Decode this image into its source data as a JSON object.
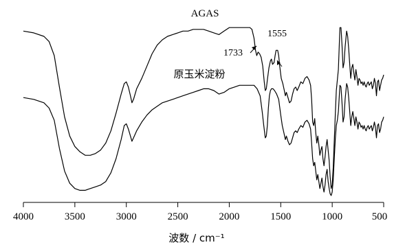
{
  "chart_data": {
    "type": "line",
    "title": "",
    "xlabel": "波数 / cm⁻¹",
    "ylabel": "",
    "x_reversed": true,
    "xlim": [
      4000,
      500
    ],
    "y_axis_visible": false,
    "grid": false,
    "x_ticks": [
      4000,
      3500,
      3000,
      2500,
      2000,
      1500,
      1000,
      500
    ],
    "series": [
      {
        "name": "AGAS",
        "points": [
          [
            4000,
            0.06
          ],
          [
            3900,
            0.07
          ],
          [
            3800,
            0.09
          ],
          [
            3750,
            0.12
          ],
          [
            3700,
            0.2
          ],
          [
            3650,
            0.38
          ],
          [
            3600,
            0.55
          ],
          [
            3550,
            0.66
          ],
          [
            3500,
            0.72
          ],
          [
            3450,
            0.75
          ],
          [
            3400,
            0.77
          ],
          [
            3350,
            0.77
          ],
          [
            3300,
            0.76
          ],
          [
            3250,
            0.74
          ],
          [
            3200,
            0.7
          ],
          [
            3150,
            0.63
          ],
          [
            3100,
            0.53
          ],
          [
            3050,
            0.42
          ],
          [
            3020,
            0.36
          ],
          [
            3000,
            0.35
          ],
          [
            2980,
            0.38
          ],
          [
            2960,
            0.43
          ],
          [
            2945,
            0.47
          ],
          [
            2930,
            0.45
          ],
          [
            2900,
            0.39
          ],
          [
            2850,
            0.33
          ],
          [
            2800,
            0.26
          ],
          [
            2750,
            0.19
          ],
          [
            2700,
            0.14
          ],
          [
            2650,
            0.11
          ],
          [
            2600,
            0.09
          ],
          [
            2550,
            0.08
          ],
          [
            2500,
            0.07
          ],
          [
            2450,
            0.06
          ],
          [
            2400,
            0.06
          ],
          [
            2350,
            0.05
          ],
          [
            2300,
            0.05
          ],
          [
            2250,
            0.05
          ],
          [
            2200,
            0.06
          ],
          [
            2150,
            0.07
          ],
          [
            2100,
            0.08
          ],
          [
            2050,
            0.06
          ],
          [
            2000,
            0.04
          ],
          [
            1950,
            0.04
          ],
          [
            1900,
            0.04
          ],
          [
            1850,
            0.04
          ],
          [
            1800,
            0.04
          ],
          [
            1780,
            0.05
          ],
          [
            1760,
            0.1
          ],
          [
            1745,
            0.17
          ],
          [
            1733,
            0.2
          ],
          [
            1720,
            0.18
          ],
          [
            1705,
            0.19
          ],
          [
            1690,
            0.21
          ],
          [
            1675,
            0.26
          ],
          [
            1660,
            0.35
          ],
          [
            1650,
            0.4
          ],
          [
            1640,
            0.39
          ],
          [
            1630,
            0.34
          ],
          [
            1615,
            0.27
          ],
          [
            1600,
            0.23
          ],
          [
            1590,
            0.22
          ],
          [
            1580,
            0.25
          ],
          [
            1565,
            0.24
          ],
          [
            1555,
            0.2
          ],
          [
            1545,
            0.17
          ],
          [
            1530,
            0.17
          ],
          [
            1520,
            0.2
          ],
          [
            1510,
            0.26
          ],
          [
            1495,
            0.33
          ],
          [
            1480,
            0.36
          ],
          [
            1465,
            0.4
          ],
          [
            1455,
            0.43
          ],
          [
            1445,
            0.41
          ],
          [
            1430,
            0.44
          ],
          [
            1415,
            0.47
          ],
          [
            1400,
            0.46
          ],
          [
            1385,
            0.42
          ],
          [
            1370,
            0.39
          ],
          [
            1355,
            0.38
          ],
          [
            1340,
            0.4
          ],
          [
            1325,
            0.38
          ],
          [
            1305,
            0.35
          ],
          [
            1285,
            0.36
          ],
          [
            1265,
            0.33
          ],
          [
            1245,
            0.32
          ],
          [
            1225,
            0.34
          ],
          [
            1210,
            0.37
          ],
          [
            1200,
            0.45
          ],
          [
            1190,
            0.58
          ],
          [
            1180,
            0.6
          ],
          [
            1170,
            0.56
          ],
          [
            1160,
            0.64
          ],
          [
            1150,
            0.7
          ],
          [
            1140,
            0.66
          ],
          [
            1130,
            0.71
          ],
          [
            1120,
            0.77
          ],
          [
            1110,
            0.74
          ],
          [
            1100,
            0.72
          ],
          [
            1090,
            0.79
          ],
          [
            1080,
            0.83
          ],
          [
            1070,
            0.78
          ],
          [
            1060,
            0.72
          ],
          [
            1050,
            0.68
          ],
          [
            1040,
            0.74
          ],
          [
            1030,
            0.8
          ],
          [
            1020,
            0.89
          ],
          [
            1010,
            0.96
          ],
          [
            1000,
            0.94
          ],
          [
            990,
            0.84
          ],
          [
            980,
            0.69
          ],
          [
            970,
            0.54
          ],
          [
            960,
            0.4
          ],
          [
            950,
            0.34
          ],
          [
            940,
            0.28
          ],
          [
            930,
            0.12
          ],
          [
            925,
            0.04
          ],
          [
            915,
            0.04
          ],
          [
            905,
            0.14
          ],
          [
            895,
            0.27
          ],
          [
            885,
            0.24
          ],
          [
            875,
            0.15
          ],
          [
            860,
            0.06
          ],
          [
            850,
            0.09
          ],
          [
            840,
            0.16
          ],
          [
            830,
            0.25
          ],
          [
            820,
            0.33
          ],
          [
            810,
            0.27
          ],
          [
            800,
            0.25
          ],
          [
            790,
            0.3
          ],
          [
            780,
            0.34
          ],
          [
            770,
            0.28
          ],
          [
            760,
            0.32
          ],
          [
            750,
            0.37
          ],
          [
            740,
            0.33
          ],
          [
            730,
            0.34
          ],
          [
            720,
            0.36
          ],
          [
            710,
            0.35
          ],
          [
            700,
            0.37
          ],
          [
            690,
            0.35
          ],
          [
            680,
            0.37
          ],
          [
            670,
            0.38
          ],
          [
            660,
            0.36
          ],
          [
            650,
            0.35
          ],
          [
            640,
            0.37
          ],
          [
            630,
            0.36
          ],
          [
            620,
            0.35
          ],
          [
            610,
            0.39
          ],
          [
            600,
            0.37
          ],
          [
            590,
            0.33
          ],
          [
            580,
            0.36
          ],
          [
            570,
            0.43
          ],
          [
            560,
            0.35
          ],
          [
            550,
            0.34
          ],
          [
            540,
            0.4
          ],
          [
            530,
            0.37
          ],
          [
            520,
            0.34
          ],
          [
            510,
            0.33
          ],
          [
            500,
            0.31
          ]
        ]
      },
      {
        "name": "原玉米淀粉",
        "points": [
          [
            4000,
            0.44
          ],
          [
            3900,
            0.45
          ],
          [
            3800,
            0.47
          ],
          [
            3750,
            0.5
          ],
          [
            3700,
            0.57
          ],
          [
            3650,
            0.73
          ],
          [
            3600,
            0.86
          ],
          [
            3550,
            0.93
          ],
          [
            3500,
            0.96
          ],
          [
            3450,
            0.97
          ],
          [
            3400,
            0.97
          ],
          [
            3350,
            0.96
          ],
          [
            3300,
            0.95
          ],
          [
            3250,
            0.94
          ],
          [
            3200,
            0.92
          ],
          [
            3150,
            0.87
          ],
          [
            3100,
            0.79
          ],
          [
            3050,
            0.68
          ],
          [
            3020,
            0.6
          ],
          [
            3000,
            0.59
          ],
          [
            2980,
            0.62
          ],
          [
            2960,
            0.66
          ],
          [
            2945,
            0.69
          ],
          [
            2930,
            0.67
          ],
          [
            2900,
            0.63
          ],
          [
            2850,
            0.58
          ],
          [
            2800,
            0.54
          ],
          [
            2750,
            0.51
          ],
          [
            2700,
            0.49
          ],
          [
            2650,
            0.47
          ],
          [
            2600,
            0.46
          ],
          [
            2550,
            0.45
          ],
          [
            2500,
            0.44
          ],
          [
            2450,
            0.43
          ],
          [
            2400,
            0.42
          ],
          [
            2350,
            0.41
          ],
          [
            2300,
            0.4
          ],
          [
            2250,
            0.39
          ],
          [
            2200,
            0.39
          ],
          [
            2150,
            0.4
          ],
          [
            2100,
            0.42
          ],
          [
            2050,
            0.41
          ],
          [
            2000,
            0.39
          ],
          [
            1950,
            0.38
          ],
          [
            1900,
            0.37
          ],
          [
            1850,
            0.37
          ],
          [
            1800,
            0.37
          ],
          [
            1760,
            0.37
          ],
          [
            1730,
            0.39
          ],
          [
            1700,
            0.43
          ],
          [
            1680,
            0.52
          ],
          [
            1665,
            0.6
          ],
          [
            1650,
            0.67
          ],
          [
            1640,
            0.66
          ],
          [
            1630,
            0.6
          ],
          [
            1620,
            0.5
          ],
          [
            1610,
            0.43
          ],
          [
            1600,
            0.4
          ],
          [
            1590,
            0.39
          ],
          [
            1575,
            0.39
          ],
          [
            1560,
            0.4
          ],
          [
            1540,
            0.42
          ],
          [
            1520,
            0.45
          ],
          [
            1500,
            0.54
          ],
          [
            1485,
            0.6
          ],
          [
            1470,
            0.64
          ],
          [
            1455,
            0.68
          ],
          [
            1445,
            0.66
          ],
          [
            1430,
            0.69
          ],
          [
            1415,
            0.71
          ],
          [
            1400,
            0.7
          ],
          [
            1385,
            0.67
          ],
          [
            1370,
            0.64
          ],
          [
            1355,
            0.63
          ],
          [
            1340,
            0.64
          ],
          [
            1325,
            0.62
          ],
          [
            1305,
            0.6
          ],
          [
            1285,
            0.61
          ],
          [
            1265,
            0.58
          ],
          [
            1245,
            0.57
          ],
          [
            1225,
            0.59
          ],
          [
            1210,
            0.62
          ],
          [
            1200,
            0.7
          ],
          [
            1190,
            0.79
          ],
          [
            1180,
            0.83
          ],
          [
            1170,
            0.81
          ],
          [
            1160,
            0.86
          ],
          [
            1150,
            0.91
          ],
          [
            1140,
            0.88
          ],
          [
            1130,
            0.92
          ],
          [
            1120,
            0.96
          ],
          [
            1110,
            0.93
          ],
          [
            1100,
            0.9
          ],
          [
            1090,
            0.95
          ],
          [
            1080,
            0.98
          ],
          [
            1070,
            0.94
          ],
          [
            1060,
            0.88
          ],
          [
            1050,
            0.85
          ],
          [
            1040,
            0.92
          ],
          [
            1030,
            0.96
          ],
          [
            1020,
            0.99
          ],
          [
            1010,
            1.0
          ],
          [
            1000,
            0.98
          ],
          [
            990,
            0.91
          ],
          [
            980,
            0.79
          ],
          [
            970,
            0.68
          ],
          [
            960,
            0.6
          ],
          [
            950,
            0.57
          ],
          [
            940,
            0.52
          ],
          [
            930,
            0.42
          ],
          [
            925,
            0.37
          ],
          [
            915,
            0.38
          ],
          [
            905,
            0.47
          ],
          [
            895,
            0.58
          ],
          [
            885,
            0.55
          ],
          [
            875,
            0.45
          ],
          [
            860,
            0.36
          ],
          [
            850,
            0.38
          ],
          [
            840,
            0.44
          ],
          [
            830,
            0.52
          ],
          [
            820,
            0.6
          ],
          [
            810,
            0.55
          ],
          [
            800,
            0.52
          ],
          [
            790,
            0.56
          ],
          [
            780,
            0.6
          ],
          [
            770,
            0.55
          ],
          [
            760,
            0.58
          ],
          [
            750,
            0.62
          ],
          [
            740,
            0.58
          ],
          [
            730,
            0.59
          ],
          [
            720,
            0.61
          ],
          [
            710,
            0.6
          ],
          [
            700,
            0.62
          ],
          [
            690,
            0.6
          ],
          [
            680,
            0.62
          ],
          [
            670,
            0.63
          ],
          [
            660,
            0.61
          ],
          [
            650,
            0.6
          ],
          [
            640,
            0.62
          ],
          [
            630,
            0.61
          ],
          [
            620,
            0.6
          ],
          [
            610,
            0.63
          ],
          [
            600,
            0.61
          ],
          [
            590,
            0.58
          ],
          [
            580,
            0.61
          ],
          [
            570,
            0.67
          ],
          [
            560,
            0.6
          ],
          [
            550,
            0.59
          ],
          [
            540,
            0.64
          ],
          [
            530,
            0.62
          ],
          [
            520,
            0.58
          ],
          [
            510,
            0.57
          ],
          [
            500,
            0.55
          ]
        ]
      }
    ],
    "annotations": [
      {
        "text": "1733",
        "x": 1733,
        "series": "AGAS"
      },
      {
        "text": "1555",
        "x": 1555,
        "series": "AGAS"
      }
    ]
  }
}
